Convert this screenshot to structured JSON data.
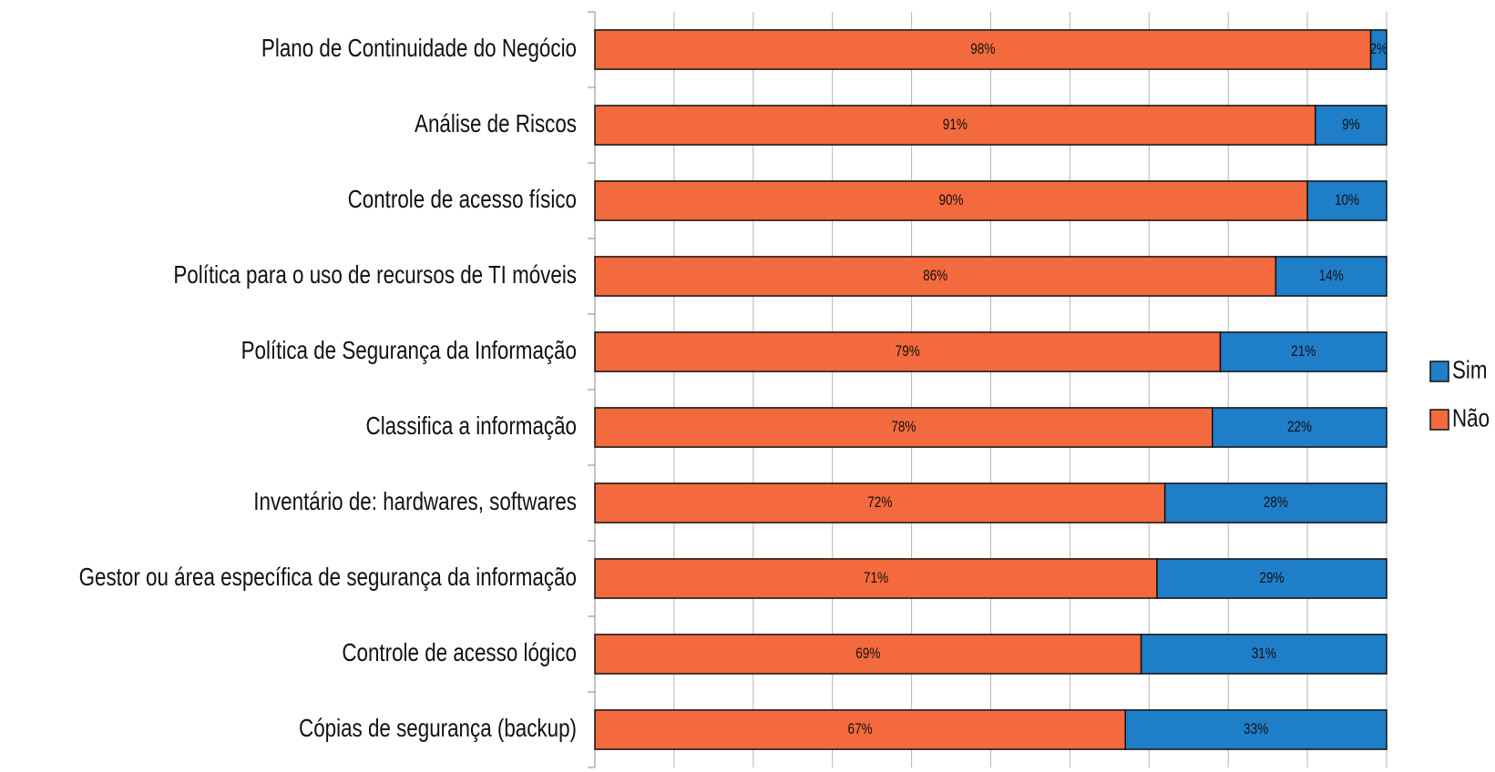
{
  "chart_data": {
    "type": "stacked_bar_horizontal",
    "categories": [
      "Plano de Continuidade do Negócio",
      "Análise de Riscos",
      "Controle de acesso físico",
      "Política para o uso de recursos de TI móveis",
      "Política de Segurança da Informação",
      "Classifica a informação",
      "Inventário de: hardwares, softwares",
      "Gestor ou área específica de segurança da informação",
      "Controle de acesso lógico",
      "Cópias de segurança (backup)"
    ],
    "series": [
      {
        "name": "Não",
        "color": "#f26a3d",
        "values": [
          98,
          91,
          90,
          86,
          79,
          78,
          72,
          71,
          69,
          67
        ],
        "value_labels": [
          "98%",
          "91%",
          "90%",
          "86%",
          "79%",
          "78%",
          "72%",
          "71%",
          "69%",
          "67%"
        ]
      },
      {
        "name": "Sim",
        "color": "#1f7ec8",
        "values": [
          2,
          9,
          10,
          14,
          21,
          22,
          28,
          29,
          31,
          33
        ],
        "value_labels": [
          "2%",
          "9%",
          "10%",
          "14%",
          "21%",
          "22%",
          "28%",
          "29%",
          "31%",
          "33%"
        ]
      }
    ],
    "xlim": [
      0,
      100
    ],
    "xticks": [
      0,
      10,
      20,
      30,
      40,
      50,
      60,
      70,
      80,
      90,
      100
    ],
    "grid": true,
    "legend": "right"
  }
}
